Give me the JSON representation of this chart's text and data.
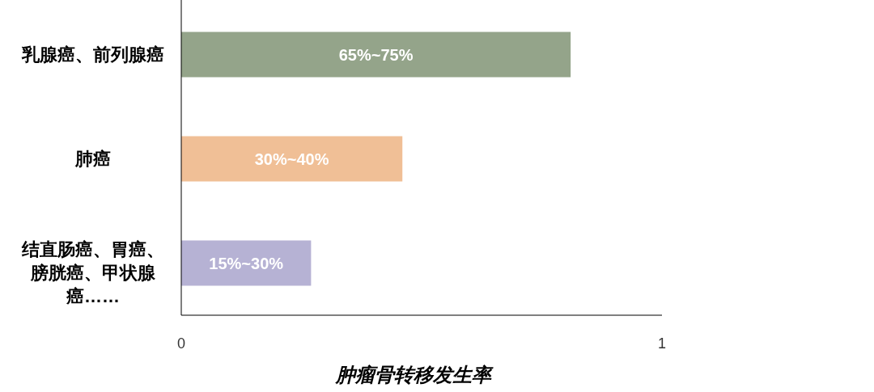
{
  "chart_data": {
    "type": "bar",
    "orientation": "horizontal",
    "categories": [
      "乳腺癌、前列腺癌",
      "肺癌",
      "结直肠癌、胃癌、膀胱癌、甲状腺癌……"
    ],
    "values": [
      0.81,
      0.46,
      0.27
    ],
    "colors": [
      "#94a48a",
      "#f0bf96",
      "#b6b2d4"
    ],
    "annotations": [
      "65%~75%",
      "30%~40%",
      "15%~30%"
    ],
    "xlim": [
      0,
      1
    ],
    "xticks": [
      0,
      1
    ],
    "xlabel": "肿瘤骨转移发生率"
  }
}
